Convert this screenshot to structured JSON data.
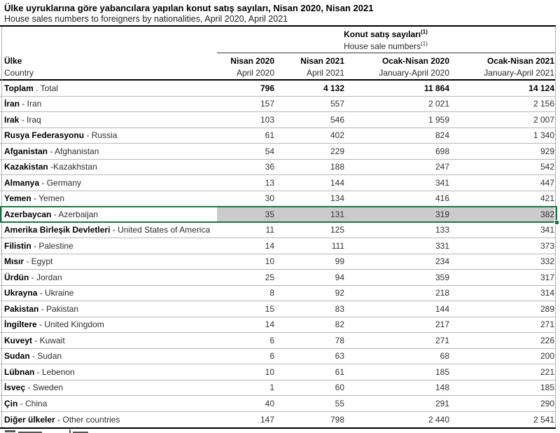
{
  "title": "Ülke uyruklarına göre yabancılara yapılan konut satış sayıları, Nisan 2020, Nisan 2021",
  "subtitle": "House sales numbers to foreigners by nationalities, April 2020, April 2021",
  "table": {
    "group_header": {
      "tr": "Konut satış sayıları",
      "en": "House sale numbers",
      "superscript": "(1)"
    },
    "columns": [
      {
        "tr": "Ülke",
        "en": "Country"
      },
      {
        "tr": "Nisan 2020",
        "en": "April 2020"
      },
      {
        "tr": "Nisan 2021",
        "en": "April 2021"
      },
      {
        "tr": "Ocak-Nisan 2020",
        "en": "January-April 2020"
      },
      {
        "tr": "Ocak-Nisan 2021",
        "en": "January-April 2021"
      }
    ],
    "rows": [
      {
        "tr": "Toplam",
        "sep": " . ",
        "en": "Total",
        "values": [
          "796",
          "4 132",
          "11 864",
          "14 124"
        ],
        "bold": true
      },
      {
        "tr": "İran",
        "sep": " - ",
        "en": "Iran",
        "values": [
          "157",
          "557",
          "2 021",
          "2 156"
        ]
      },
      {
        "tr": "Irak",
        "sep": " - ",
        "en": "Iraq",
        "values": [
          "103",
          "546",
          "1 959",
          "2 007"
        ]
      },
      {
        "tr": "Rusya Federasyonu",
        "sep": " - ",
        "en": "Russia",
        "values": [
          "61",
          "402",
          "824",
          "1 340"
        ]
      },
      {
        "tr": "Afganistan",
        "sep": " - ",
        "en": "Afghanistan",
        "values": [
          "54",
          "229",
          "698",
          "929"
        ]
      },
      {
        "tr": "Kazakistan",
        "sep": " -",
        "en": "Kazakhstan",
        "values": [
          "36",
          "188",
          "247",
          "542"
        ]
      },
      {
        "tr": "Almanya",
        "sep": " - ",
        "en": "Germany",
        "values": [
          "13",
          "144",
          "341",
          "447"
        ]
      },
      {
        "tr": "Yemen",
        "sep": " - ",
        "en": "Yemen",
        "values": [
          "30",
          "134",
          "416",
          "421"
        ]
      },
      {
        "tr": "Azerbaycan",
        "sep": " - ",
        "en": "Azerbaijan",
        "values": [
          "35",
          "131",
          "319",
          "382"
        ],
        "selected": true
      },
      {
        "tr": "Amerika Birleşik Devletleri",
        "sep": " - ",
        "en": "United States of America",
        "values": [
          "11",
          "125",
          "133",
          "341"
        ]
      },
      {
        "tr": "Filistin",
        "sep": " - ",
        "en": "Palestine",
        "values": [
          "14",
          "111",
          "331",
          "373"
        ]
      },
      {
        "tr": "Mısır",
        "sep": " - ",
        "en": "Egypt",
        "values": [
          "10",
          "99",
          "234",
          "332"
        ]
      },
      {
        "tr": "Ürdün",
        "sep": " - ",
        "en": "Jordan",
        "values": [
          "25",
          "94",
          "359",
          "317"
        ]
      },
      {
        "tr": "Ukrayna",
        "sep": " - ",
        "en": "Ukraine",
        "values": [
          "8",
          "92",
          "218",
          "314"
        ]
      },
      {
        "tr": "Pakistan",
        "sep": " - ",
        "en": "Pakistan",
        "values": [
          "15",
          "83",
          "144",
          "289"
        ]
      },
      {
        "tr": "İngiltere",
        "sep": " - ",
        "en": "United Kingdom",
        "values": [
          "14",
          "82",
          "217",
          "271"
        ]
      },
      {
        "tr": "Kuveyt",
        "sep": " - ",
        "en": "Kuwait",
        "values": [
          "6",
          "78",
          "271",
          "226"
        ]
      },
      {
        "tr": "Sudan",
        "sep": " - ",
        "en": "Sudan",
        "values": [
          "6",
          "63",
          "68",
          "200"
        ]
      },
      {
        "tr": "Lübnan",
        "sep": " - ",
        "en": "Lebenon",
        "values": [
          "10",
          "61",
          "185",
          "221"
        ]
      },
      {
        "tr": "İsveç",
        "sep": " - ",
        "en": "Sweden",
        "values": [
          "1",
          "60",
          "148",
          "185"
        ]
      },
      {
        "tr": "Çin",
        "sep": " - ",
        "en": "China",
        "values": [
          "40",
          "55",
          "291",
          "290"
        ]
      },
      {
        "tr": "Diğer ülkeler",
        "sep": " - ",
        "en": "Other countries",
        "values": [
          "147",
          "798",
          "2 440",
          "2 541"
        ]
      }
    ]
  },
  "selection": {
    "border_color": "#1F7246",
    "fill_color": "#CBCBCB"
  }
}
